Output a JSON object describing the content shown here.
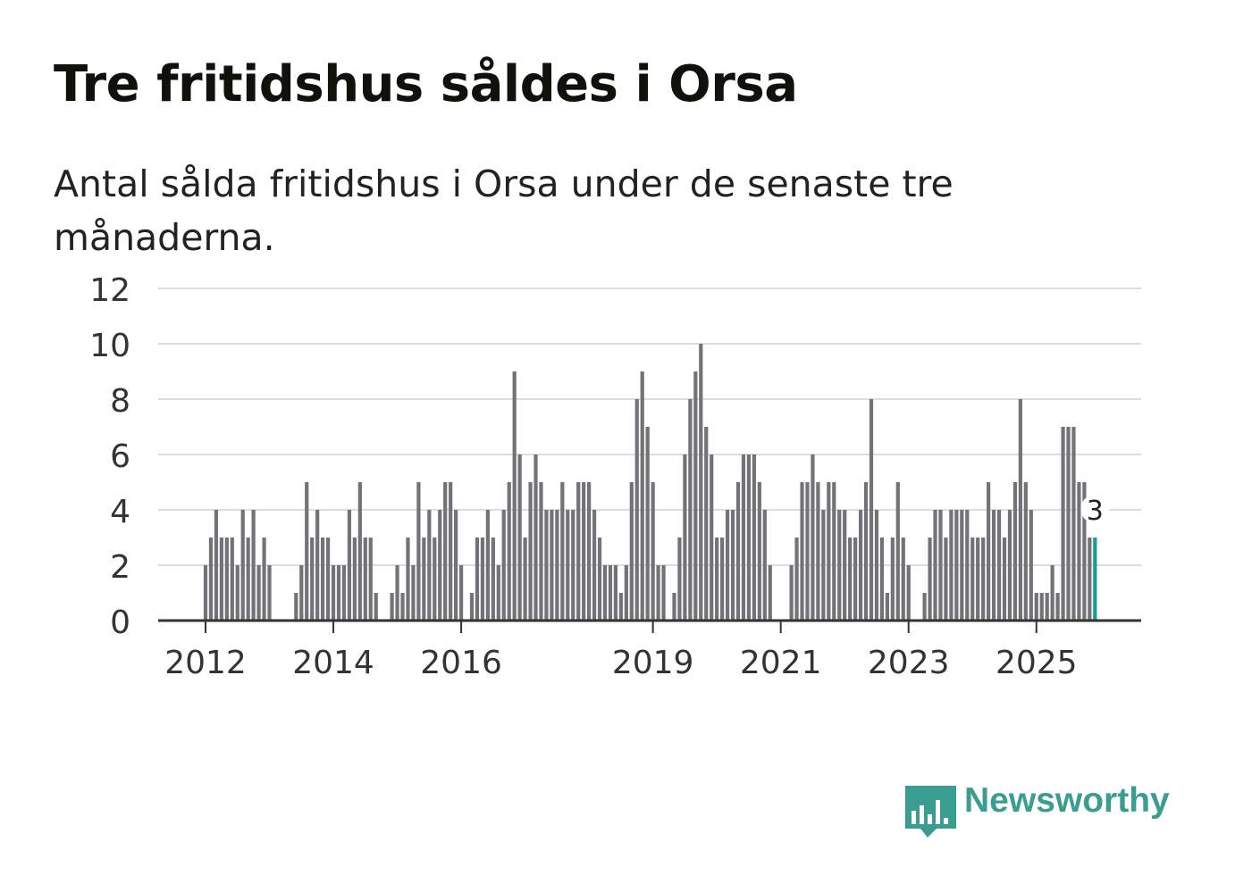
{
  "title": "Tre fritidshus såldes i Orsa",
  "subtitle": "Antal sålda fritidshus i Orsa under de senaste tre månaderna.",
  "brand": "Newsworthy",
  "colors": {
    "bar": "#737276",
    "highlight": "#169c94",
    "grid": "#dddddd",
    "axis": "#333333"
  },
  "chart_data": {
    "type": "bar",
    "title": "Tre fritidshus såldes i Orsa",
    "subtitle": "Antal sålda fritidshus i Orsa under de senaste tre månaderna.",
    "xlabel": "",
    "ylabel": "",
    "ylim": [
      0,
      12
    ],
    "y_ticks": [
      0,
      2,
      4,
      6,
      8,
      10,
      12
    ],
    "x_tick_labels": [
      {
        "label": "2012",
        "index": 0
      },
      {
        "label": "2014",
        "index": 24
      },
      {
        "label": "2016",
        "index": 48
      },
      {
        "label": "2019",
        "index": 84
      },
      {
        "label": "2021",
        "index": 108
      },
      {
        "label": "2023",
        "index": 132
      },
      {
        "label": "2025",
        "index": 156
      }
    ],
    "start_month": "2012-01",
    "values": [
      2,
      3,
      4,
      3,
      3,
      3,
      2,
      4,
      3,
      4,
      2,
      3,
      2,
      0,
      0,
      0,
      0,
      1,
      2,
      5,
      3,
      4,
      3,
      3,
      2,
      2,
      2,
      4,
      3,
      5,
      3,
      3,
      1,
      0,
      0,
      1,
      2,
      1,
      3,
      2,
      5,
      3,
      4,
      3,
      4,
      5,
      5,
      4,
      2,
      0,
      1,
      3,
      3,
      4,
      3,
      2,
      4,
      5,
      9,
      6,
      3,
      5,
      6,
      5,
      4,
      4,
      4,
      5,
      4,
      4,
      5,
      5,
      5,
      4,
      3,
      2,
      2,
      2,
      1,
      2,
      5,
      8,
      9,
      7,
      5,
      2,
      2,
      0,
      1,
      3,
      6,
      8,
      9,
      10,
      7,
      6,
      3,
      3,
      4,
      4,
      5,
      6,
      6,
      6,
      5,
      4,
      2,
      0,
      0,
      0,
      2,
      3,
      5,
      5,
      6,
      5,
      4,
      5,
      5,
      4,
      4,
      3,
      3,
      4,
      5,
      8,
      4,
      3,
      1,
      3,
      5,
      3,
      2,
      0,
      0,
      1,
      3,
      4,
      4,
      3,
      4,
      4,
      4,
      4,
      3,
      3,
      3,
      5,
      4,
      4,
      3,
      4,
      5,
      8,
      5,
      4,
      1,
      1,
      1,
      2,
      1,
      7,
      7,
      7,
      5,
      5,
      3,
      3
    ],
    "highlight_index": 167,
    "highlight_label": "3"
  }
}
